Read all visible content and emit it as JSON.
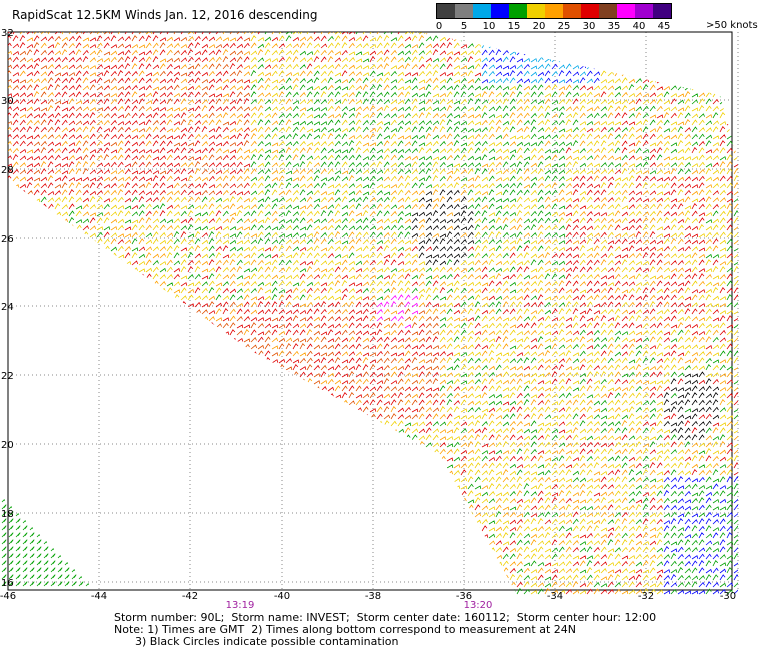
{
  "title": "RapidScat 12.5KM Winds Jan. 12, 2016 descending",
  "colorbar": {
    "colors": [
      "#404040",
      "#7f7f7f",
      "#00a8e8",
      "#0000ff",
      "#00a000",
      "#f0d000",
      "#ffa000",
      "#e05000",
      "#e00000",
      "#804020",
      "#ff00ff",
      "#a000d0",
      "#400080"
    ],
    "labels": [
      "0",
      "5",
      "10",
      "15",
      "20",
      "25",
      "30",
      "35",
      "40",
      "45"
    ],
    "top_label": ">50 knots"
  },
  "y_labels": [
    "32",
    "30",
    "28",
    "26",
    "24",
    "22",
    "20",
    "18",
    "16"
  ],
  "x_labels": [
    "-46",
    "-44",
    "-42",
    "-40",
    "-38",
    "-36",
    "-34",
    "-32",
    "-30"
  ],
  "time_labels": [
    "13:19",
    "13:20"
  ],
  "notes": [
    "Storm number: 90L;  Storm name: INVEST;  Storm center date: 160112;  Storm center hour: 12:00",
    "Note: 1) Times are GMT  2) Times along bottom correspond to measurement at 24N",
    "      3) Black Circles indicate possible contamination"
  ]
}
